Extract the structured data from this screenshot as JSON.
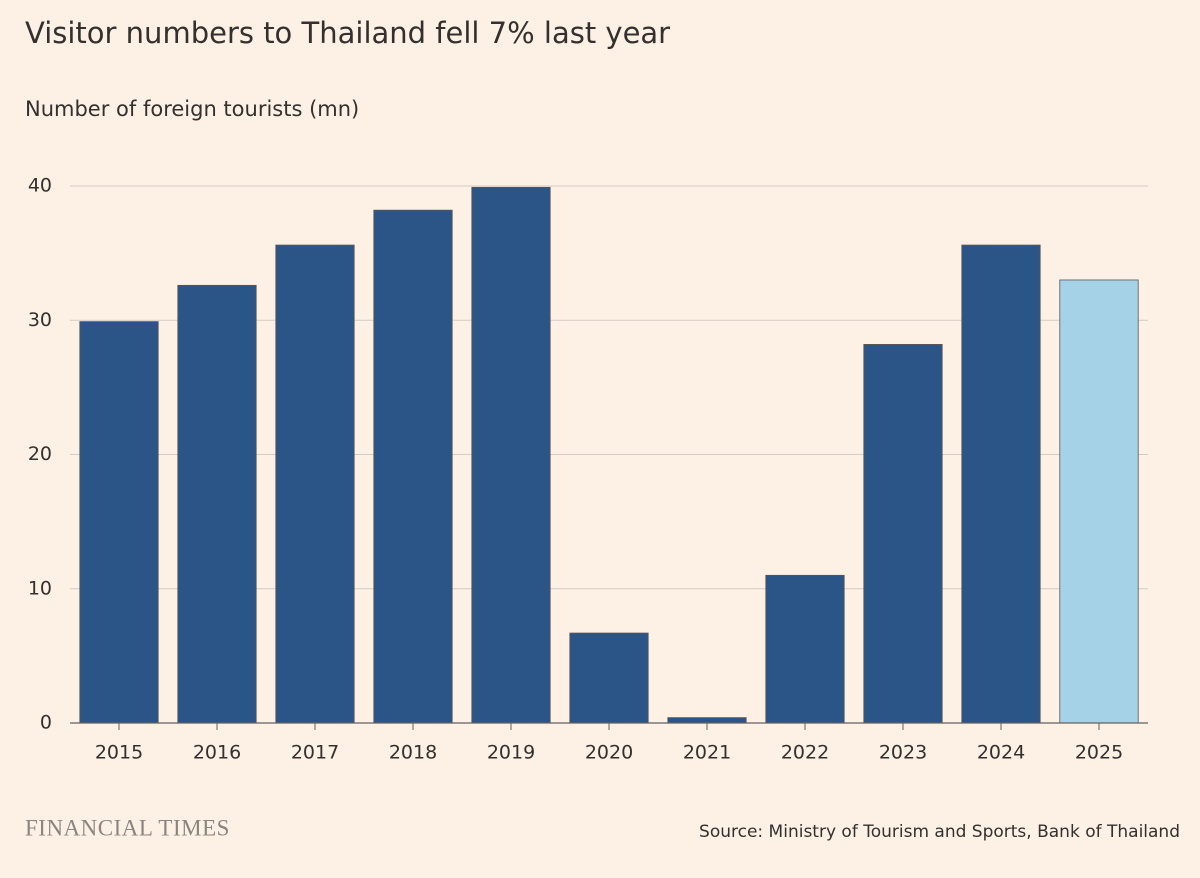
{
  "chart_data": {
    "type": "bar",
    "title": "Visitor numbers to Thailand fell 7% last year",
    "subtitle": "Number of foreign tourists (mn)",
    "categories": [
      "2015",
      "2016",
      "2017",
      "2018",
      "2019",
      "2020",
      "2021",
      "2022",
      "2023",
      "2024",
      "2025"
    ],
    "values": [
      29.9,
      32.6,
      35.6,
      38.2,
      39.9,
      6.7,
      0.4,
      11.0,
      28.2,
      35.6,
      33.0
    ],
    "colors": [
      "#2c5587",
      "#2c5587",
      "#2c5587",
      "#2c5587",
      "#2c5587",
      "#2c5587",
      "#2c5587",
      "#2c5587",
      "#2c5587",
      "#2c5587",
      "#a5d2e6"
    ],
    "ylim": [
      0,
      40
    ],
    "yticks": [
      0,
      10,
      20,
      30,
      40
    ],
    "grid": true,
    "logo": "FINANCIAL TIMES",
    "source": "Source: Ministry of Tourism and Sports, Bank of Thailand"
  }
}
